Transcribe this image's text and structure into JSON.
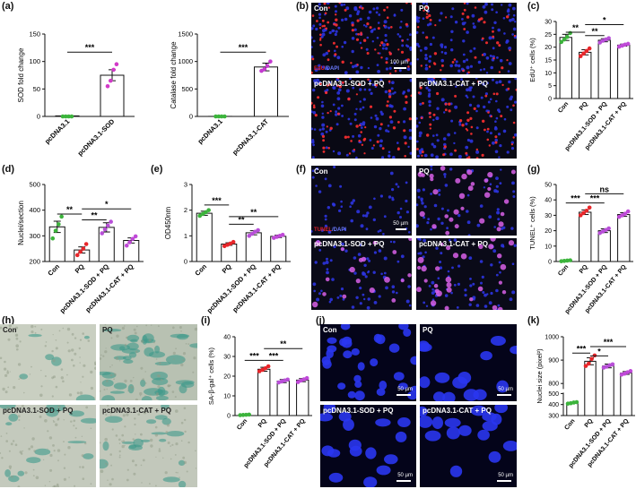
{
  "panel_labels": {
    "a": "(a)",
    "b": "(b)",
    "c": "(c)",
    "d": "(d)",
    "e": "(e)",
    "f": "(f)",
    "g": "(g)",
    "h": "(h)",
    "i": "(i)",
    "j": "(j)",
    "k": "(k)"
  },
  "micrographs": {
    "b": {
      "tl": "Con",
      "tr": "PQ",
      "bl": "pcDNA3.1-SOD + PQ",
      "br": "pcDNA3.1-CAT + PQ",
      "stain_red": "EdU",
      "stain_sep": "/",
      "stain_blue": "DAPI",
      "scale": "100 µm"
    },
    "f": {
      "tl": "Con",
      "tr": "PQ",
      "bl": "pcDNA3.1-SOD + PQ",
      "br": "pcDNA3.1-CAT + PQ",
      "stain_red": "TUNEL",
      "stain_sep": "/",
      "stain_blue": "DAPI",
      "scale": "50 µm"
    },
    "h": {
      "tl": "Con",
      "tr": "PQ",
      "bl": "pcDNA3.1-SOD + PQ",
      "br": "pcDNA3.1-CAT + PQ"
    },
    "j": {
      "tl": "Con",
      "tr": "PQ",
      "bl": "pcDNA3.1-SOD + PQ",
      "br": "pcDNA3.1-CAT + PQ",
      "scale_tl": "50 µm",
      "scale_tr": "50 µm",
      "scale_bl": "50 µm",
      "scale_br": "50 µm"
    }
  },
  "colors": {
    "con": "#3cb43c",
    "pq": "#e8262a",
    "sod": "#b84fd8",
    "cat": "#c04ad8",
    "sod_a": "#d23ac8",
    "cat_a": "#c43ad0",
    "line": "#111111"
  },
  "chart_data": [
    {
      "id": "a1",
      "type": "bar",
      "ylabel": "SOD fold change",
      "categories": [
        "pcDNA3.1",
        "pcDNA3.1-SOD"
      ],
      "values": [
        1,
        75
      ],
      "errors": [
        0,
        10
      ],
      "ylim": [
        0,
        150
      ],
      "yticks": [
        0,
        50,
        100,
        150
      ],
      "points": [
        [
          0,
          0,
          0,
          0
        ],
        [
          55,
          65,
          85,
          95
        ]
      ],
      "point_colors": [
        "con",
        "sod_a"
      ],
      "sig": [
        {
          "from": 0,
          "to": 1,
          "label": "***",
          "level": 117
        }
      ]
    },
    {
      "id": "a2",
      "type": "bar",
      "ylabel": "Catalase fold change",
      "categories": [
        "pcDNA3.1",
        "pcDNA3.1-CAT"
      ],
      "values": [
        1,
        900
      ],
      "errors": [
        0,
        70
      ],
      "ylim": [
        0,
        1500
      ],
      "yticks": [
        0,
        500,
        1000,
        1500
      ],
      "points": [
        [
          0,
          0,
          0,
          0
        ],
        [
          830,
          860,
          920,
          1000
        ]
      ],
      "point_colors": [
        "con",
        "cat_a"
      ],
      "sig": [
        {
          "from": 0,
          "to": 1,
          "label": "***",
          "level": 1170
        }
      ]
    },
    {
      "id": "c",
      "type": "bar",
      "ylabel": "EdU⁺ cells (%)",
      "categories": [
        "Con",
        "PQ",
        "pcDNA3.1-SOD + PQ",
        "pcDNA3.1-CAT + PQ"
      ],
      "values": [
        23.8,
        18.0,
        22.7,
        20.8
      ],
      "errors": [
        1.2,
        1.0,
        0.6,
        0.4
      ],
      "ylim": [
        0,
        30
      ],
      "yticks": [
        0,
        5,
        10,
        15,
        20,
        25,
        30
      ],
      "points": [
        [
          22,
          23,
          24,
          25.5
        ],
        [
          16.5,
          17.5,
          18.5,
          19.5
        ],
        [
          21.8,
          22.5,
          23,
          23.5
        ],
        [
          20.2,
          20.6,
          21,
          21.3
        ]
      ],
      "point_colors": [
        "con",
        "pq",
        "sod",
        "cat"
      ],
      "sig": [
        {
          "from": 0,
          "to": 1,
          "label": "**",
          "level": 25.8
        },
        {
          "from": 1,
          "to": 2,
          "label": "**",
          "level": 24.5
        },
        {
          "from": 1,
          "to": 3,
          "label": "*",
          "level": 28.8
        }
      ]
    },
    {
      "id": "d",
      "type": "bar",
      "ylabel": "Nuclei/section",
      "categories": [
        "Con",
        "PQ",
        "pcDNA3.1-SOD + PQ",
        "pcDNA3.1-CAT + PQ"
      ],
      "values": [
        335,
        245,
        333,
        282
      ],
      "errors": [
        22,
        12,
        18,
        10
      ],
      "ylim": [
        200,
        500
      ],
      "yticks": [
        200,
        300,
        400,
        500
      ],
      "points": [
        [
          290,
          320,
          345,
          375
        ],
        [
          225,
          238,
          250,
          268
        ],
        [
          310,
          325,
          340,
          355
        ],
        [
          262,
          275,
          288,
          298
        ]
      ],
      "point_colors": [
        "con",
        "pq",
        "sod",
        "cat"
      ],
      "sig": [
        {
          "from": 0,
          "to": 1,
          "label": "**",
          "level": 385
        },
        {
          "from": 1,
          "to": 2,
          "label": "**",
          "level": 362
        },
        {
          "from": 1,
          "to": 3,
          "label": "*",
          "level": 405
        }
      ]
    },
    {
      "id": "e",
      "type": "bar",
      "ylabel": "OD450nm",
      "categories": [
        "Con",
        "PQ",
        "pcDNA3.1-SOD + PQ",
        "pcDNA3.1-CAT + PQ"
      ],
      "values": [
        1.88,
        0.68,
        1.12,
        0.98
      ],
      "errors": [
        0.08,
        0.05,
        0.08,
        0.05
      ],
      "ylim": [
        0,
        3
      ],
      "yticks": [
        0,
        1,
        2,
        3
      ],
      "points": [
        [
          1.78,
          1.85,
          1.92,
          2.0
        ],
        [
          0.6,
          0.65,
          0.7,
          0.76
        ],
        [
          1.0,
          1.08,
          1.16,
          1.22
        ],
        [
          0.92,
          0.96,
          1.0,
          1.04
        ]
      ],
      "point_colors": [
        "con",
        "pq",
        "sod",
        "cat"
      ],
      "sig": [
        {
          "from": 0,
          "to": 1,
          "label": "***",
          "level": 2.2
        },
        {
          "from": 1,
          "to": 2,
          "label": "**",
          "level": 1.45
        },
        {
          "from": 1,
          "to": 3,
          "label": "**",
          "level": 1.75
        }
      ]
    },
    {
      "id": "g",
      "type": "bar",
      "ylabel": "TUNEL⁺ cells (%)",
      "categories": [
        "Con",
        "PQ",
        "pcDNA3.1-SOD + PQ",
        "pcDNA3.1-CAT + PQ"
      ],
      "values": [
        0.5,
        32,
        20,
        30.5
      ],
      "errors": [
        0.2,
        1.5,
        1.2,
        1.2
      ],
      "ylim": [
        0,
        50
      ],
      "yticks": [
        0,
        10,
        20,
        30,
        40,
        50
      ],
      "points": [
        [
          0.2,
          0.4,
          0.6,
          0.8
        ],
        [
          30,
          31.5,
          33,
          35
        ],
        [
          18.5,
          19.5,
          20.5,
          21.5
        ],
        [
          29,
          30,
          31,
          32.5
        ]
      ],
      "point_colors": [
        "con",
        "pq",
        "sod",
        "cat"
      ],
      "sig": [
        {
          "from": 0,
          "to": 1,
          "label": "***",
          "level": 38
        },
        {
          "from": 1,
          "to": 2,
          "label": "***",
          "level": 38
        },
        {
          "from": 1,
          "to": 3,
          "label": "ns",
          "level": 44
        }
      ]
    },
    {
      "id": "i",
      "type": "bar",
      "ylabel": "SA-β-gal⁺ cells (%)",
      "categories": [
        "Con",
        "PQ",
        "pcDNA3.1-SOD + PQ",
        "pcDNA3.1-CAT + PQ"
      ],
      "values": [
        0.3,
        23.5,
        17.5,
        18.0
      ],
      "errors": [
        0.2,
        1.0,
        0.8,
        0.8
      ],
      "ylim": [
        0,
        40
      ],
      "yticks": [
        0,
        10,
        20,
        30,
        40
      ],
      "points": [
        [
          0.2,
          0.3,
          0.4,
          0.5
        ],
        [
          22.5,
          23.2,
          24,
          25
        ],
        [
          16.8,
          17.3,
          17.8,
          18.3
        ],
        [
          17,
          17.8,
          18.4,
          19
        ]
      ],
      "point_colors": [
        "con",
        "pq",
        "sod",
        "cat"
      ],
      "sig": [
        {
          "from": 0,
          "to": 1,
          "label": "***",
          "level": 28
        },
        {
          "from": 1,
          "to": 2,
          "label": "***",
          "level": 28
        },
        {
          "from": 1,
          "to": 3,
          "label": "**",
          "level": 34
        }
      ]
    },
    {
      "id": "k",
      "type": "bar",
      "ylabel": "Nuclei size (pixel²)",
      "categories": [
        "Con",
        "PQ",
        "pcDNA3.1-SOD + PQ",
        "pcDNA3.1-CAT + PQ"
      ],
      "values": [
        415,
        895,
        875,
        845
      ],
      "errors": [
        5,
        15,
        8,
        6
      ],
      "ylim": [
        300,
        1000
      ],
      "yticks": [
        300,
        400,
        500,
        800,
        900,
        1000
      ],
      "axis_break": [
        500,
        780
      ],
      "points": [
        [
          408,
          412,
          418,
          422
        ],
        [
          875,
          885,
          905,
          920
        ],
        [
          868,
          872,
          878,
          882
        ],
        [
          838,
          842,
          848,
          853
        ]
      ],
      "point_colors": [
        "con",
        "pq",
        "sod",
        "cat"
      ],
      "sig": [
        {
          "from": 0,
          "to": 1,
          "label": "***",
          "level": 930
        },
        {
          "from": 1,
          "to": 2,
          "label": "*",
          "level": 918
        },
        {
          "from": 1,
          "to": 3,
          "label": "***",
          "level": 958
        }
      ]
    }
  ]
}
